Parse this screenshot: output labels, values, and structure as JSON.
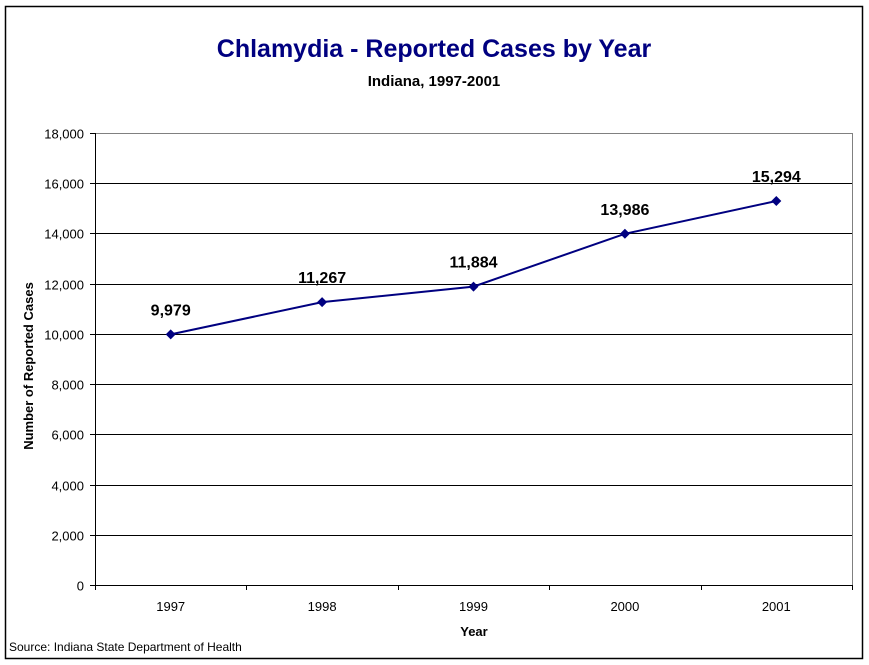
{
  "chart_data": {
    "type": "line",
    "title": "Chlamydia - Reported Cases by Year",
    "subtitle": "Indiana, 1997-2001",
    "xlabel": "Year",
    "ylabel": "Number of Reported Cases",
    "categories": [
      "1997",
      "1998",
      "1999",
      "2000",
      "2001"
    ],
    "series": [
      {
        "name": "Reported Cases",
        "values": [
          9979,
          11267,
          11884,
          13986,
          15294
        ],
        "labels": [
          "9,979",
          "11,267",
          "11,884",
          "13,986",
          "15,294"
        ],
        "color": "#000080",
        "marker": "diamond"
      }
    ],
    "ylim": [
      0,
      18000
    ],
    "yticks": [
      0,
      2000,
      4000,
      6000,
      8000,
      10000,
      12000,
      14000,
      16000,
      18000
    ],
    "ytick_labels": [
      "0",
      "2,000",
      "4,000",
      "6,000",
      "8,000",
      "10,000",
      "12,000",
      "14,000",
      "16,000",
      "18,000"
    ],
    "grid": "horizontal",
    "legend": "none",
    "source": "Source: Indiana State Department of Health"
  }
}
